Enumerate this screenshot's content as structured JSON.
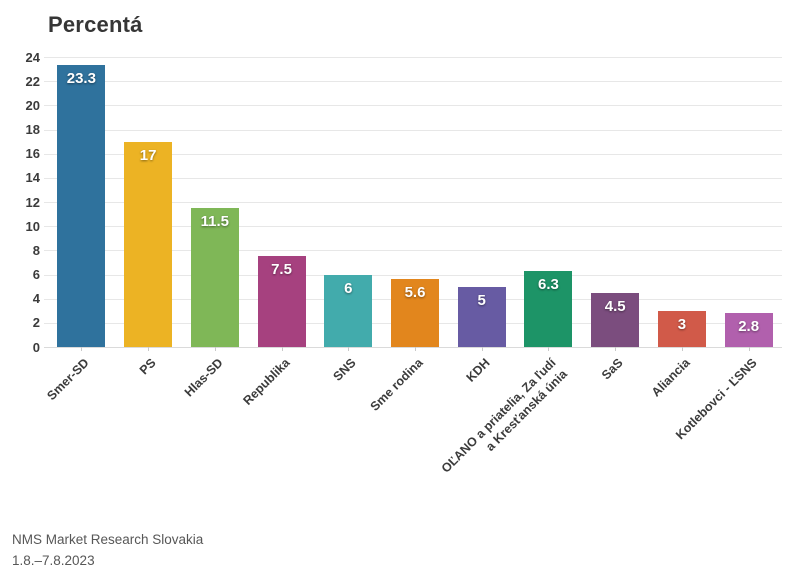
{
  "title": "Percentá",
  "footer": {
    "source": "NMS Market Research Slovakia",
    "date_range": "1.8.–7.8.2023"
  },
  "chart_data": {
    "type": "bar",
    "title": "Percentá",
    "categories": [
      "Smer-SD",
      "PS",
      "Hlas-SD",
      "Republika",
      "SNS",
      "Sme rodina",
      "KDH",
      "OĽANO a priatelia, Za ľudí\na Kresťanská únia",
      "SaS",
      "Aliancia",
      "Kotlebovci - ĽSNS"
    ],
    "values": [
      23.3,
      17,
      11.5,
      7.5,
      6,
      5.6,
      5,
      6.3,
      4.5,
      3,
      2.8
    ],
    "bar_colors": [
      "#2f729d",
      "#ecb324",
      "#7fb757",
      "#a6417f",
      "#42abac",
      "#e2861d",
      "#675ba3",
      "#1d9467",
      "#7b4d7e",
      "#d15a49",
      "#b160ad"
    ],
    "xlabel": "",
    "ylabel": "",
    "ylim": [
      0,
      24
    ],
    "ytick_step": 2,
    "grid": true,
    "legend": "none",
    "value_labels": true,
    "value_label_color": "#ffffff",
    "axis_text_color": "#3b3b3b",
    "grid_color": "#e7e7e7"
  }
}
